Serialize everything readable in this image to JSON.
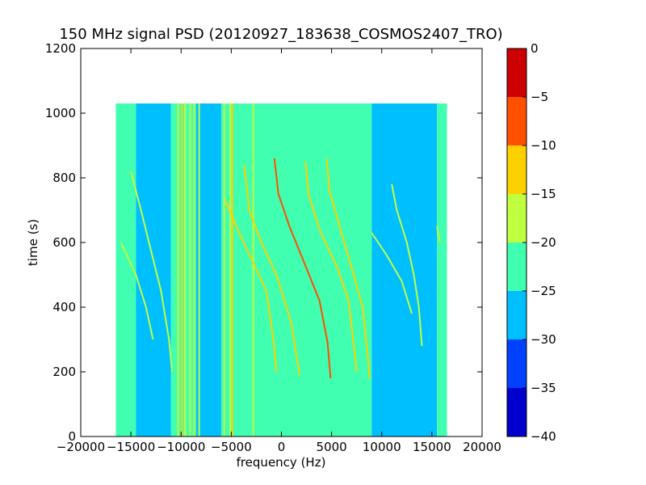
{
  "chart_data": {
    "type": "heatmap",
    "title": "150 MHz signal PSD (20120927_183638_COSMOS2407_TRO)",
    "xlabel": "frequency (Hz)",
    "ylabel": "time (s)",
    "xlim": [
      -20000,
      20000
    ],
    "ylim": [
      0,
      1200
    ],
    "xticks": [
      -20000,
      -15000,
      -10000,
      -5000,
      0,
      5000,
      10000,
      15000,
      20000
    ],
    "yticks": [
      0,
      200,
      400,
      600,
      800,
      1000,
      1200
    ],
    "data_extent": {
      "x": [
        -16500,
        16500
      ],
      "y": [
        0,
        1030
      ]
    },
    "background_bands": [
      {
        "x": [
          -16500,
          -14500
        ],
        "level": -22.5
      },
      {
        "x": [
          -14500,
          -11000
        ],
        "level": -27.5
      },
      {
        "x": [
          -11000,
          -8500
        ],
        "level": -22.5
      },
      {
        "x": [
          -8500,
          -6000
        ],
        "level": -27.5
      },
      {
        "x": [
          -6000,
          9000
        ],
        "level": -22.5
      },
      {
        "x": [
          9000,
          15500
        ],
        "level": -27.5
      },
      {
        "x": [
          15500,
          16500
        ],
        "level": -22.5
      }
    ],
    "vertical_lines": [
      {
        "x": -10300,
        "level": -17.5
      },
      {
        "x": -9900,
        "level": -12.5
      },
      {
        "x": -9600,
        "level": -17.5
      },
      {
        "x": -9100,
        "level": -17.5
      },
      {
        "x": -8700,
        "level": -17.5
      },
      {
        "x": -8200,
        "level": -17.5
      },
      {
        "x": -5700,
        "level": -17.5
      },
      {
        "x": -5100,
        "level": -17.5
      },
      {
        "x": -4900,
        "level": -12.5
      },
      {
        "x": -2800,
        "level": -17.5
      }
    ],
    "traces": [
      {
        "points": [
          [
            -15000,
            820
          ],
          [
            -14000,
            700
          ],
          [
            -13200,
            600
          ],
          [
            -12000,
            450
          ],
          [
            -11200,
            300
          ],
          [
            -10900,
            200
          ]
        ],
        "level": -17.5
      },
      {
        "points": [
          [
            -16000,
            600
          ],
          [
            -14500,
            500
          ],
          [
            -13500,
            400
          ],
          [
            -12800,
            300
          ]
        ],
        "level": -17.5
      },
      {
        "points": [
          [
            -5600,
            730
          ],
          [
            -4500,
            650
          ],
          [
            -3000,
            550
          ],
          [
            -1500,
            450
          ],
          [
            -800,
            300
          ],
          [
            -500,
            200
          ]
        ],
        "level": -12.5
      },
      {
        "points": [
          [
            -3700,
            840
          ],
          [
            -3200,
            700
          ],
          [
            -2000,
            600
          ],
          [
            -500,
            500
          ],
          [
            1000,
            350
          ],
          [
            1800,
            190
          ]
        ],
        "level": -12.5
      },
      {
        "points": [
          [
            -700,
            860
          ],
          [
            -300,
            750
          ],
          [
            800,
            650
          ],
          [
            2500,
            520
          ],
          [
            3800,
            420
          ],
          [
            4600,
            290
          ],
          [
            4900,
            180
          ]
        ],
        "level": -7.5
      },
      {
        "points": [
          [
            2400,
            850
          ],
          [
            2700,
            750
          ],
          [
            3800,
            640
          ],
          [
            5600,
            520
          ],
          [
            6700,
            420
          ],
          [
            7300,
            260
          ],
          [
            7500,
            200
          ]
        ],
        "level": -12.5
      },
      {
        "points": [
          [
            4500,
            860
          ],
          [
            4800,
            760
          ],
          [
            5800,
            650
          ],
          [
            7200,
            500
          ],
          [
            8100,
            400
          ],
          [
            8600,
            250
          ],
          [
            8800,
            180
          ]
        ],
        "level": -12.5
      },
      {
        "points": [
          [
            11000,
            780
          ],
          [
            11500,
            700
          ],
          [
            12500,
            600
          ],
          [
            13200,
            500
          ],
          [
            13700,
            400
          ],
          [
            14000,
            280
          ]
        ],
        "level": -17.5
      },
      {
        "points": [
          [
            9000,
            630
          ],
          [
            10500,
            560
          ],
          [
            12000,
            480
          ],
          [
            13000,
            380
          ]
        ],
        "level": -17.5
      },
      {
        "points": [
          [
            15500,
            650
          ],
          [
            15800,
            600
          ]
        ],
        "level": -17.5
      }
    ],
    "colorbar": {
      "min": -40,
      "max": 0,
      "ticks": [
        0,
        -5,
        -10,
        -15,
        -20,
        -25,
        -30,
        -35,
        -40
      ],
      "bins": [
        {
          "range": [
            -40,
            -35
          ],
          "color": "#0000CC"
        },
        {
          "range": [
            -35,
            -30
          ],
          "color": "#0040FF"
        },
        {
          "range": [
            -30,
            -25
          ],
          "color": "#00BFFF"
        },
        {
          "range": [
            -25,
            -20
          ],
          "color": "#40FFB0"
        },
        {
          "range": [
            -20,
            -15
          ],
          "color": "#BFFF40"
        },
        {
          "range": [
            -15,
            -10
          ],
          "color": "#FFD000"
        },
        {
          "range": [
            -10,
            -5
          ],
          "color": "#FF5000"
        },
        {
          "range": [
            -5,
            0
          ],
          "color": "#CC0000"
        }
      ]
    },
    "grid": false,
    "legend": "none"
  }
}
